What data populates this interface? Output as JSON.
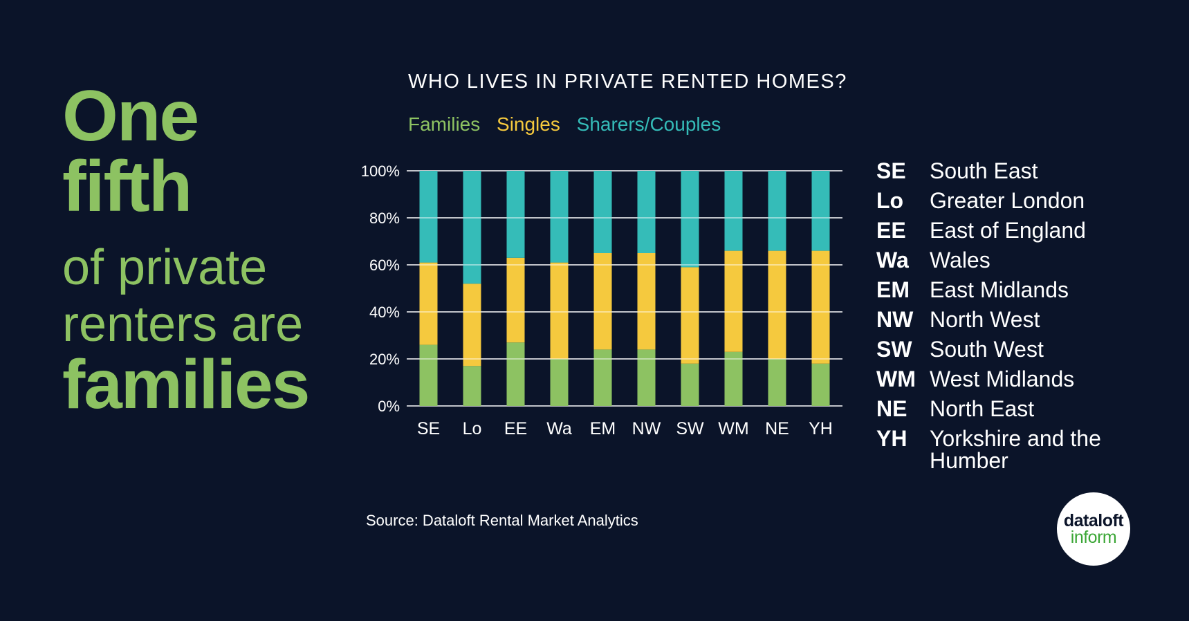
{
  "headline": {
    "line1": "One",
    "line2": "fifth",
    "line3": "of private",
    "line4": "renters are",
    "line5": "families"
  },
  "colors": {
    "background": "#0b1429",
    "families": "#8dc262",
    "singles": "#f5c93e",
    "sharers": "#35bcb8",
    "text": "#ffffff"
  },
  "chart_data": {
    "type": "bar",
    "stacked": true,
    "title": "WHO LIVES IN PRIVATE RENTED HOMES?",
    "categories": [
      "SE",
      "Lo",
      "EE",
      "Wa",
      "EM",
      "NW",
      "SW",
      "WM",
      "NE",
      "YH"
    ],
    "series": [
      {
        "name": "Families",
        "color": "#8dc262",
        "values": [
          26,
          17,
          27,
          20,
          24,
          24,
          18,
          23,
          20,
          18
        ]
      },
      {
        "name": "Singles",
        "color": "#f5c93e",
        "values": [
          35,
          35,
          36,
          41,
          41,
          41,
          41,
          43,
          46,
          48
        ]
      },
      {
        "name": "Sharers/Couples",
        "color": "#35bcb8",
        "values": [
          39,
          48,
          37,
          39,
          35,
          35,
          41,
          34,
          34,
          34
        ]
      }
    ],
    "yticks": [
      "0%",
      "20%",
      "40%",
      "60%",
      "80%",
      "100%"
    ],
    "ylim": [
      0,
      100
    ],
    "grid": true,
    "legend_position": "top-left"
  },
  "key": [
    {
      "code": "SE",
      "name": "South East"
    },
    {
      "code": "Lo",
      "name": "Greater London"
    },
    {
      "code": "EE",
      "name": "East of England"
    },
    {
      "code": "Wa",
      "name": "Wales"
    },
    {
      "code": "EM",
      "name": "East Midlands"
    },
    {
      "code": "NW",
      "name": "North West"
    },
    {
      "code": "SW",
      "name": "South West"
    },
    {
      "code": "WM",
      "name": "West Midlands"
    },
    {
      "code": "NE",
      "name": "North East"
    },
    {
      "code": "YH",
      "name": "Yorkshire and the Humber"
    }
  ],
  "source": "Source: Dataloft Rental Market Analytics",
  "logo": {
    "line1": "dataloft",
    "line2": "inform"
  }
}
